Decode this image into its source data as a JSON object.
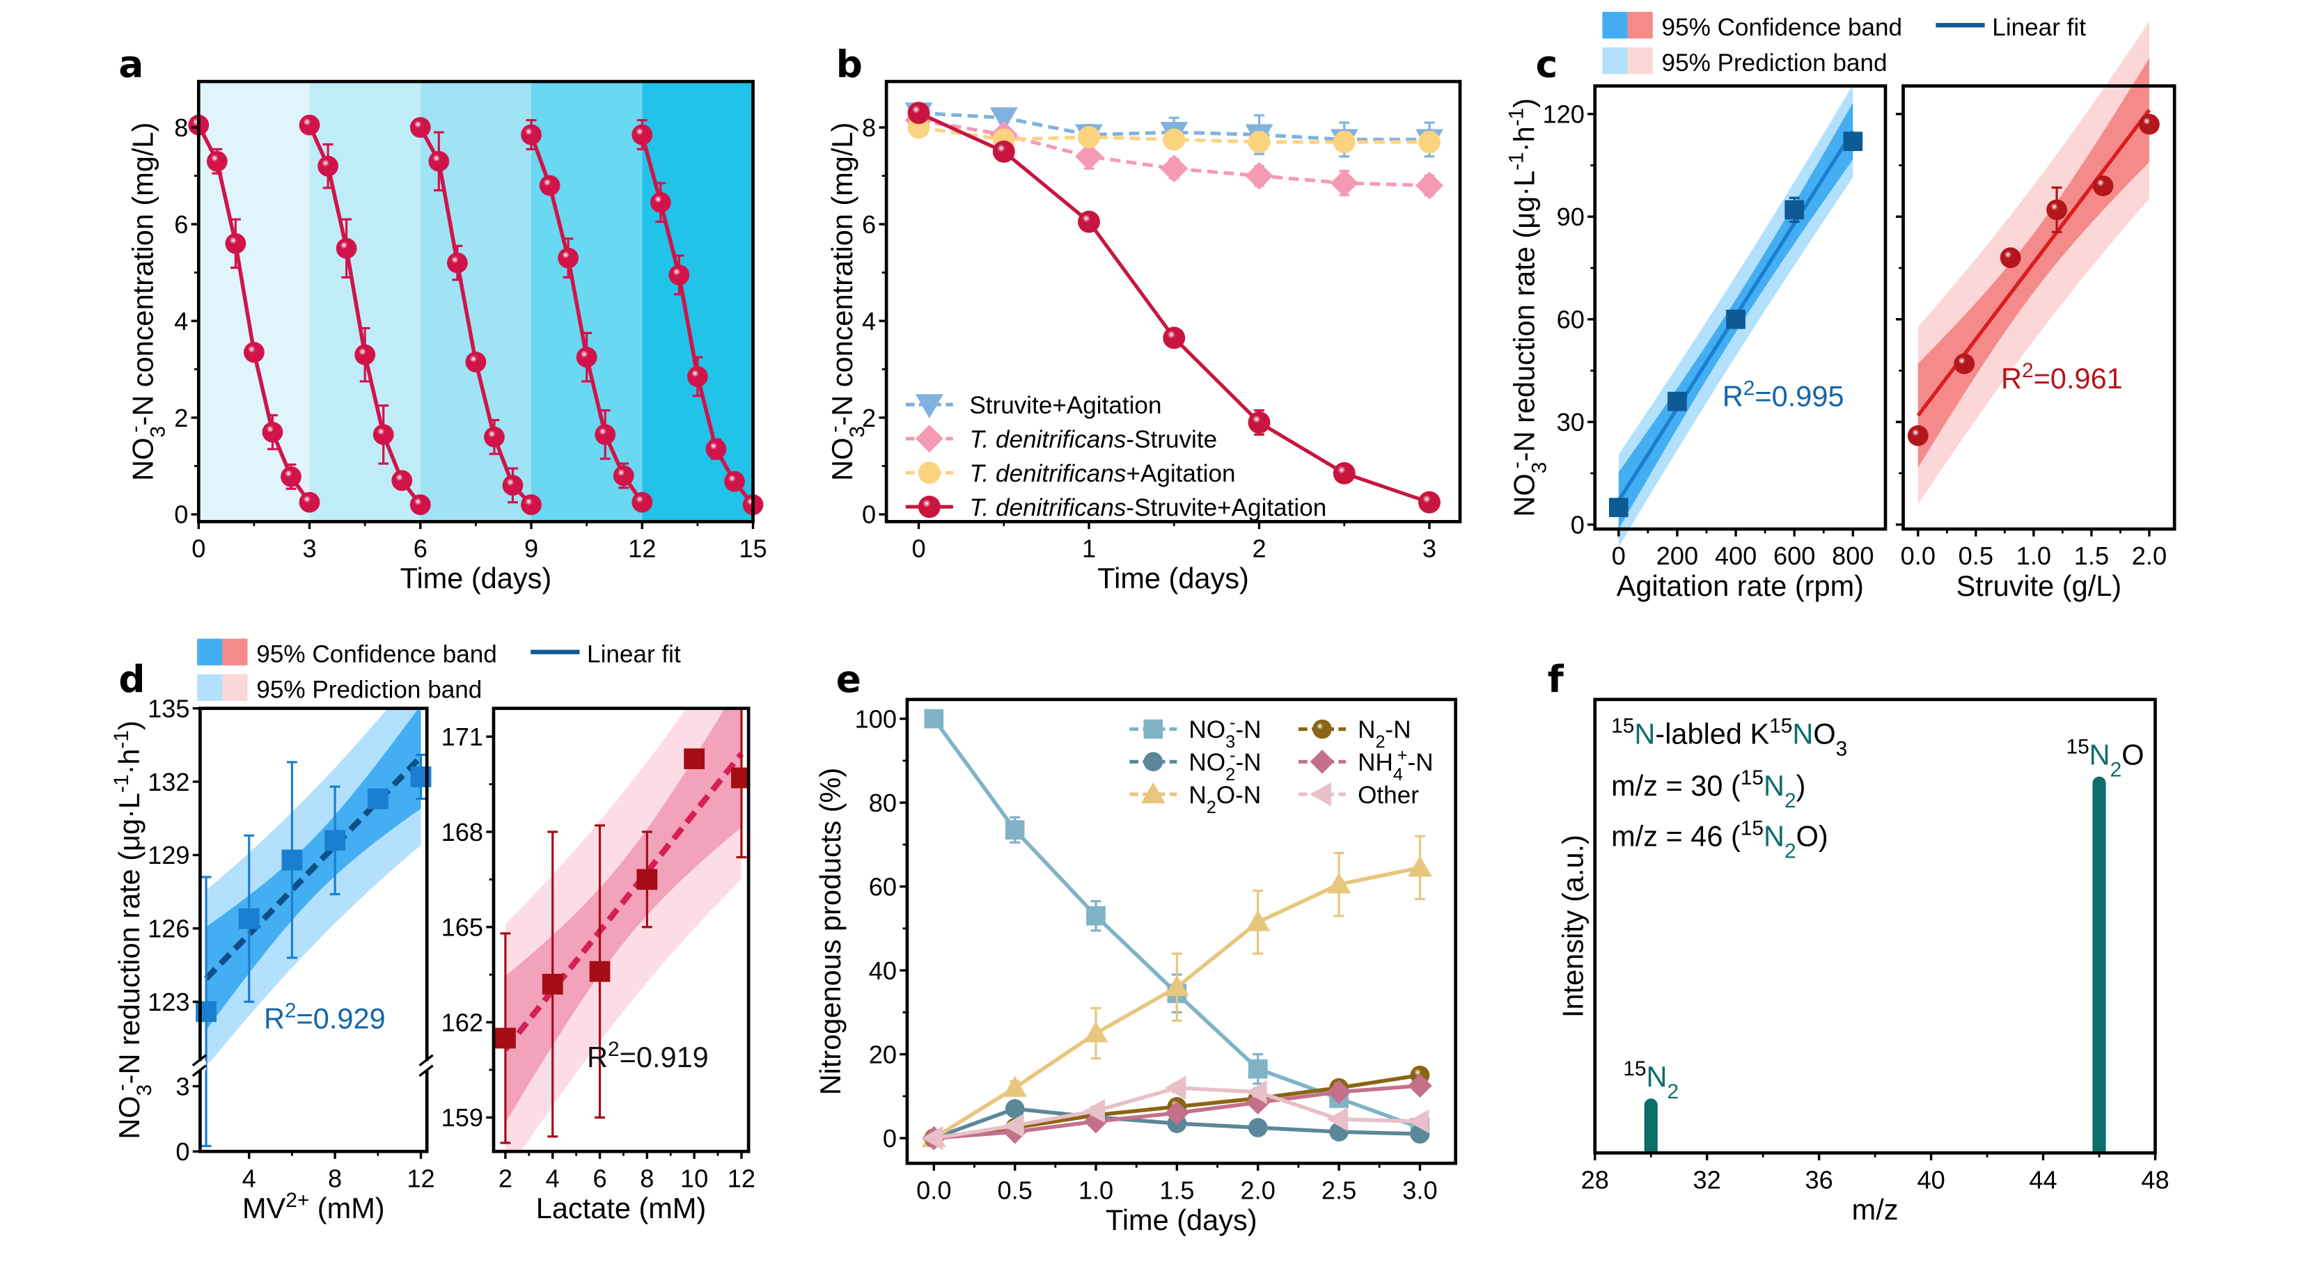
{
  "panel_labels": {
    "a": "a",
    "b": "b",
    "c": "c",
    "d": "d",
    "e": "e",
    "f": "f"
  },
  "colors": {
    "crimson": "#d0144a",
    "teal": "#0b6e6a",
    "cycle_bands": [
      "#dff4fb",
      "#c0ecf8",
      "#9fe3f4",
      "#6ad8f0",
      "#22c3e8"
    ],
    "blue_conf": "#44aef2",
    "blue_pred": "#b3e0fc",
    "red_conf": "#f48a8a",
    "red_pred": "#fcd7d7",
    "pink_conf": "#f2a2ba",
    "pink_pred": "#fcdde6"
  },
  "band_legend": {
    "confidence": "95% Confidence band",
    "prediction": "95% Prediction band",
    "fit": "Linear fit"
  },
  "chart_data": [
    {
      "id": "a",
      "type": "line",
      "xlabel": [
        [
          "Time (days)",
          ""
        ]
      ],
      "ylabel": [
        [
          "NO",
          ""
        ],
        [
          "3",
          "sub"
        ],
        [
          "-",
          "supb"
        ],
        [
          "-N concentration (mg/L)",
          ""
        ]
      ],
      "x_range": [
        0,
        15
      ],
      "y_range": [
        -0.15,
        8.95
      ],
      "xticks": [
        "0",
        "3",
        "6",
        "9",
        "12",
        "15"
      ],
      "yticks": [
        "0",
        "2",
        "4",
        "6",
        "8"
      ],
      "cycle_boundaries": [
        0,
        3,
        6,
        9,
        12,
        15
      ],
      "cycles": [
        {
          "x": [
            0,
            0.5,
            1,
            1.5,
            2,
            2.5,
            3
          ],
          "y": [
            8.05,
            7.3,
            5.6,
            3.35,
            1.7,
            0.78,
            0.25
          ],
          "err": [
            0.1,
            0.25,
            0.5,
            0.1,
            0.35,
            0.25,
            0.05
          ]
        },
        {
          "x": [
            3,
            3.5,
            4,
            4.5,
            5,
            5.5,
            6
          ],
          "y": [
            8.05,
            7.2,
            5.5,
            3.3,
            1.65,
            0.7,
            0.2
          ],
          "err": [
            0.15,
            0.45,
            0.6,
            0.55,
            0.6,
            0.15,
            0.05
          ]
        },
        {
          "x": [
            6,
            6.5,
            7,
            7.5,
            8,
            8.5,
            9
          ],
          "y": [
            8.0,
            7.3,
            5.2,
            3.15,
            1.6,
            0.6,
            0.2
          ],
          "err": [
            0.15,
            0.6,
            0.35,
            0.15,
            0.35,
            0.35,
            0.05
          ]
        },
        {
          "x": [
            9,
            9.5,
            10,
            10.5,
            11,
            11.5,
            12
          ],
          "y": [
            7.85,
            6.8,
            5.3,
            3.25,
            1.65,
            0.8,
            0.25
          ],
          "err": [
            0.3,
            0.1,
            0.4,
            0.5,
            0.5,
            0.25,
            0.05
          ]
        },
        {
          "x": [
            12,
            12.5,
            13,
            13.5,
            14,
            14.5,
            15
          ],
          "y": [
            7.85,
            6.45,
            4.95,
            2.85,
            1.35,
            0.68,
            0.2
          ],
          "err": [
            0.3,
            0.4,
            0.4,
            0.4,
            0.2,
            0.15,
            0.05
          ]
        }
      ]
    },
    {
      "id": "b",
      "type": "line",
      "xlabel": [
        [
          "Time (days)",
          ""
        ]
      ],
      "ylabel": [
        [
          "NO",
          ""
        ],
        [
          "3",
          "sub"
        ],
        [
          "-",
          "supb"
        ],
        [
          "-N concentration (mg/L)",
          ""
        ]
      ],
      "x_range": [
        -0.19,
        3.18
      ],
      "y_range": [
        -0.15,
        8.95
      ],
      "xticks": [
        "0",
        "1",
        "2",
        "3"
      ],
      "yticks": [
        "0",
        "2",
        "4",
        "6",
        "8"
      ],
      "x": [
        0,
        0.5,
        1,
        1.5,
        2,
        2.5,
        3
      ],
      "series": [
        {
          "name": "Struvite+Agitation",
          "label": [
            [
              "Struvite+Agitation",
              ""
            ]
          ],
          "y": [
            8.3,
            8.2,
            7.85,
            7.9,
            7.85,
            7.75,
            7.75
          ],
          "err": [
            0.1,
            0.1,
            0.2,
            0.3,
            0.4,
            0.35,
            0.35
          ],
          "color": "#7fb2de",
          "marker": "tridown",
          "dash": true
        },
        {
          "name": "T. denitrificans-Struvite",
          "label": [
            [
              "T. denitrificans",
              "i"
            ],
            [
              "-Struvite",
              ""
            ]
          ],
          "y": [
            8.15,
            7.85,
            7.4,
            7.15,
            7.0,
            6.85,
            6.8
          ],
          "err": [
            0.1,
            0.15,
            0.25,
            0.2,
            0.2,
            0.25,
            0.2
          ],
          "color": "#f49ab5",
          "marker": "diamond",
          "dash": true
        },
        {
          "name": "T. denitrificans+Agitation",
          "label": [
            [
              "T. denitrificans",
              "i"
            ],
            [
              "+Agitation",
              ""
            ]
          ],
          "y": [
            8.0,
            7.75,
            7.8,
            7.75,
            7.7,
            7.7,
            7.7
          ],
          "err": [
            0.1,
            0.1,
            0.15,
            0.15,
            0.2,
            0.2,
            0.2
          ],
          "color": "#fbd37f",
          "marker": "circle",
          "dash": true
        },
        {
          "name": "T. denitrificans-Struvite+Agitation",
          "label": [
            [
              "T. denitrificans",
              "i"
            ],
            [
              "-Struvite+Agitation",
              ""
            ]
          ],
          "y": [
            8.3,
            7.5,
            6.05,
            3.65,
            1.9,
            0.85,
            0.25
          ],
          "err": [
            0.1,
            0.15,
            0.1,
            0.1,
            0.25,
            0.05,
            0.05
          ],
          "color": "#c8153f",
          "marker": "ball",
          "dash": false
        }
      ],
      "legend_position": "bottom-left"
    },
    {
      "id": "c-left",
      "type": "scatter",
      "xlabel": [
        [
          "Agitation rate (rpm)",
          ""
        ]
      ],
      "ylabel": [
        [
          "NO",
          ""
        ],
        [
          "3",
          "sub"
        ],
        [
          "-",
          "supb"
        ],
        [
          "-N reduction rate (μg·L",
          ""
        ],
        [
          "-1",
          "sup"
        ],
        [
          "·h",
          ""
        ],
        [
          "-1",
          "sup"
        ],
        [
          ")",
          ""
        ]
      ],
      "x_range": [
        -81,
        911
      ],
      "y_range": [
        -1.3,
        128.2
      ],
      "xticks": [
        "0",
        "200",
        "400",
        "600",
        "800"
      ],
      "yticks": [
        "0",
        "30",
        "60",
        "90",
        "120"
      ],
      "x": [
        0,
        200,
        400,
        600,
        800
      ],
      "y": [
        5,
        36,
        60,
        92,
        112
      ],
      "err": [
        0,
        0,
        0,
        3.5,
        1.5
      ],
      "color": "#0e5a94",
      "marker": "square",
      "band": "blue",
      "r2": [
        [
          "R",
          ""
        ],
        [
          "2",
          "sup"
        ],
        [
          "=0.995",
          ""
        ]
      ]
    },
    {
      "id": "c-right",
      "type": "scatter",
      "xlabel": [
        [
          "Struvite (g/L)",
          ""
        ]
      ],
      "x_range": [
        -0.128,
        2.218
      ],
      "y_range": [
        -1.3,
        128.2
      ],
      "xticks": [
        "0.0",
        "0.5",
        "1.0",
        "1.5",
        "2.0"
      ],
      "yticks": [
        "0",
        "30",
        "60",
        "90",
        "120"
      ],
      "x": [
        0,
        0.4,
        0.8,
        1.2,
        1.6,
        2.0
      ],
      "y": [
        26,
        47,
        78,
        92,
        99,
        117
      ],
      "err": [
        0,
        0,
        2,
        6.5,
        0,
        0
      ],
      "color": "#b3161c",
      "marker": "ball",
      "band": "red",
      "r2": [
        [
          "R",
          ""
        ],
        [
          "2",
          "sup"
        ],
        [
          "=0.961",
          ""
        ]
      ]
    },
    {
      "id": "d-left",
      "type": "scatter",
      "xlabel": [
        [
          "MV",
          ""
        ],
        [
          "2+",
          "sup"
        ],
        [
          " (mM)",
          ""
        ]
      ],
      "ylabel": [
        [
          "NO",
          ""
        ],
        [
          "3",
          "sub"
        ],
        [
          "-",
          "supb"
        ],
        [
          "-N reduction rate (μg·L",
          ""
        ],
        [
          "-1",
          "sup"
        ],
        [
          "·h",
          ""
        ],
        [
          "-1",
          "sup"
        ],
        [
          ")",
          ""
        ]
      ],
      "x_range": [
        1.72,
        12.28
      ],
      "y_range": [
        0,
        135
      ],
      "y_break": [
        3.3,
        120.4
      ],
      "xticks": [
        "4",
        "8",
        "12"
      ],
      "yticks": [
        "0",
        "3",
        "123",
        "126",
        "129",
        "132",
        "135"
      ],
      "x": [
        2,
        4,
        6,
        8,
        10,
        12
      ],
      "y": [
        122.6,
        126.4,
        128.8,
        129.6,
        131.3,
        132.2
      ],
      "err": [
        5.5,
        3.4,
        4.0,
        2.2,
        0.3,
        0.9
      ],
      "color": "#1a7fd0",
      "marker": "square",
      "band": "blue",
      "fit_color": "#0d4f86",
      "r2": [
        [
          "R",
          ""
        ],
        [
          "2",
          "sup"
        ],
        [
          "=0.929",
          ""
        ]
      ]
    },
    {
      "id": "d-right",
      "type": "scatter",
      "xlabel": [
        [
          "Lactate (mM)",
          ""
        ]
      ],
      "x_range": [
        1.5,
        12.3
      ],
      "y_range": [
        157.93,
        171.89
      ],
      "xticks": [
        "2",
        "4",
        "6",
        "8",
        "10",
        "12"
      ],
      "yticks": [
        "159",
        "162",
        "165",
        "168",
        "171"
      ],
      "x": [
        2,
        4,
        6,
        8,
        10,
        12
      ],
      "y": [
        161.5,
        163.2,
        163.6,
        166.5,
        170.3,
        169.7
      ],
      "err": [
        3.3,
        4.8,
        4.6,
        1.5,
        0.2,
        2.5
      ],
      "color": "#a50d14",
      "marker": "square",
      "band": "pink",
      "fit_color": "#d61f55",
      "r2": [
        [
          "R",
          ""
        ],
        [
          "2",
          "sup"
        ],
        [
          "=0.919",
          ""
        ]
      ]
    },
    {
      "id": "e",
      "type": "line",
      "xlabel": [
        [
          "Time (days)",
          ""
        ]
      ],
      "ylabel": [
        [
          "Nitrogenous products (%)",
          ""
        ]
      ],
      "x_range": [
        -0.165,
        3.22
      ],
      "y_range": [
        -6,
        104.6
      ],
      "xticks": [
        "0.0",
        "0.5",
        "1.0",
        "1.5",
        "2.0",
        "2.5",
        "3.0"
      ],
      "yticks": [
        "0",
        "20",
        "40",
        "60",
        "80",
        "100"
      ],
      "x": [
        0,
        0.5,
        1,
        1.5,
        2,
        2.5,
        3
      ],
      "series": [
        {
          "name": "NO3--N",
          "label": [
            [
              "NO",
              ""
            ],
            [
              "3",
              "sub"
            ],
            [
              "-",
              "supb"
            ],
            [
              "-N",
              ""
            ]
          ],
          "y": [
            100,
            73.5,
            53,
            34.5,
            16.5,
            9.5,
            2.5
          ],
          "err": [
            0,
            3,
            3.5,
            4.5,
            3.5,
            1,
            1
          ],
          "color": "#7fb3c5",
          "marker": "square"
        },
        {
          "name": "NO2--N",
          "label": [
            [
              "NO",
              ""
            ],
            [
              "2",
              "sub"
            ],
            [
              "-",
              "supb"
            ],
            [
              "-N",
              ""
            ]
          ],
          "y": [
            0,
            7,
            5,
            3.5,
            2.5,
            1.5,
            1
          ],
          "err": [
            0,
            0.5,
            0.5,
            0.5,
            0.5,
            0.5,
            0.5
          ],
          "color": "#5a8799",
          "marker": "circle"
        },
        {
          "name": "N2O-N",
          "label": [
            [
              "N",
              ""
            ],
            [
              "2",
              "sub"
            ],
            [
              "O-N",
              ""
            ]
          ],
          "y": [
            0,
            12,
            25,
            36,
            51.5,
            60.5,
            64.5
          ],
          "err": [
            0,
            1.5,
            6,
            8,
            7.5,
            7.5,
            7.5
          ],
          "color": "#e7c67d",
          "marker": "tri"
        },
        {
          "name": "N2-N",
          "label": [
            [
              "N",
              ""
            ],
            [
              "2",
              "sub"
            ],
            [
              "-N",
              ""
            ]
          ],
          "y": [
            0,
            2.5,
            5.5,
            7.5,
            9.5,
            12,
            15
          ],
          "err": [
            0,
            0.5,
            1,
            1,
            1,
            1,
            1
          ],
          "color": "#8b6414",
          "marker": "ball"
        },
        {
          "name": "NH4+-N",
          "label": [
            [
              "NH",
              ""
            ],
            [
              "4",
              "sub"
            ],
            [
              "+",
              "supb"
            ],
            [
              "-N",
              ""
            ]
          ],
          "y": [
            0,
            1.5,
            4,
            6,
            8.5,
            11,
            12.5
          ],
          "err": [
            0,
            0.5,
            1,
            1,
            1,
            1,
            1
          ],
          "color": "#c4708b",
          "marker": "diamond"
        },
        {
          "name": "Other",
          "label": [
            [
              "Other",
              ""
            ]
          ],
          "y": [
            0,
            3,
            6.5,
            12,
            11,
            4.5,
            4
          ],
          "err": [
            0,
            0.5,
            1,
            1,
            1,
            0.5,
            0.5
          ],
          "color": "#e8c0c8",
          "marker": "tril"
        }
      ],
      "legend_position": "top-right"
    },
    {
      "id": "f",
      "type": "bar",
      "xlabel": [
        [
          "m/z",
          ""
        ]
      ],
      "ylabel": [
        [
          "Intensity (a.u.)",
          ""
        ]
      ],
      "x_range": [
        28,
        48
      ],
      "y_range": [
        0,
        1
      ],
      "xticks": [
        "28",
        "32",
        "36",
        "40",
        "44",
        "48"
      ],
      "bars": [
        {
          "x": 30,
          "relative_intensity": 0.12,
          "label": [
            [
              "15",
              "sup"
            ],
            [
              "N",
              "c"
            ],
            [
              "2",
              "sub c"
            ]
          ]
        },
        {
          "x": 46,
          "relative_intensity": 0.83,
          "label": [
            [
              "15",
              "sup"
            ],
            [
              "N",
              "c"
            ],
            [
              "2",
              "sub c"
            ],
            [
              "O",
              ""
            ]
          ]
        }
      ],
      "color": "#0b6e6a",
      "annotations": [
        [
          [
            "15",
            "sup"
          ],
          [
            "N",
            "c"
          ],
          [
            "-labled K",
            ""
          ],
          [
            "15",
            "sup"
          ],
          [
            "N",
            "c"
          ],
          [
            "O",
            ""
          ],
          [
            "3",
            "sub"
          ]
        ],
        [
          [
            "m/z = 30 (",
            ""
          ],
          [
            "15",
            "sup"
          ],
          [
            "N",
            "c"
          ],
          [
            "2",
            "sub c"
          ],
          [
            ")",
            ""
          ]
        ],
        [
          [
            "m/z = 46 (",
            ""
          ],
          [
            "15",
            "sup"
          ],
          [
            "N",
            "c"
          ],
          [
            "2",
            "sub c"
          ],
          [
            "O)",
            ""
          ]
        ]
      ]
    }
  ]
}
